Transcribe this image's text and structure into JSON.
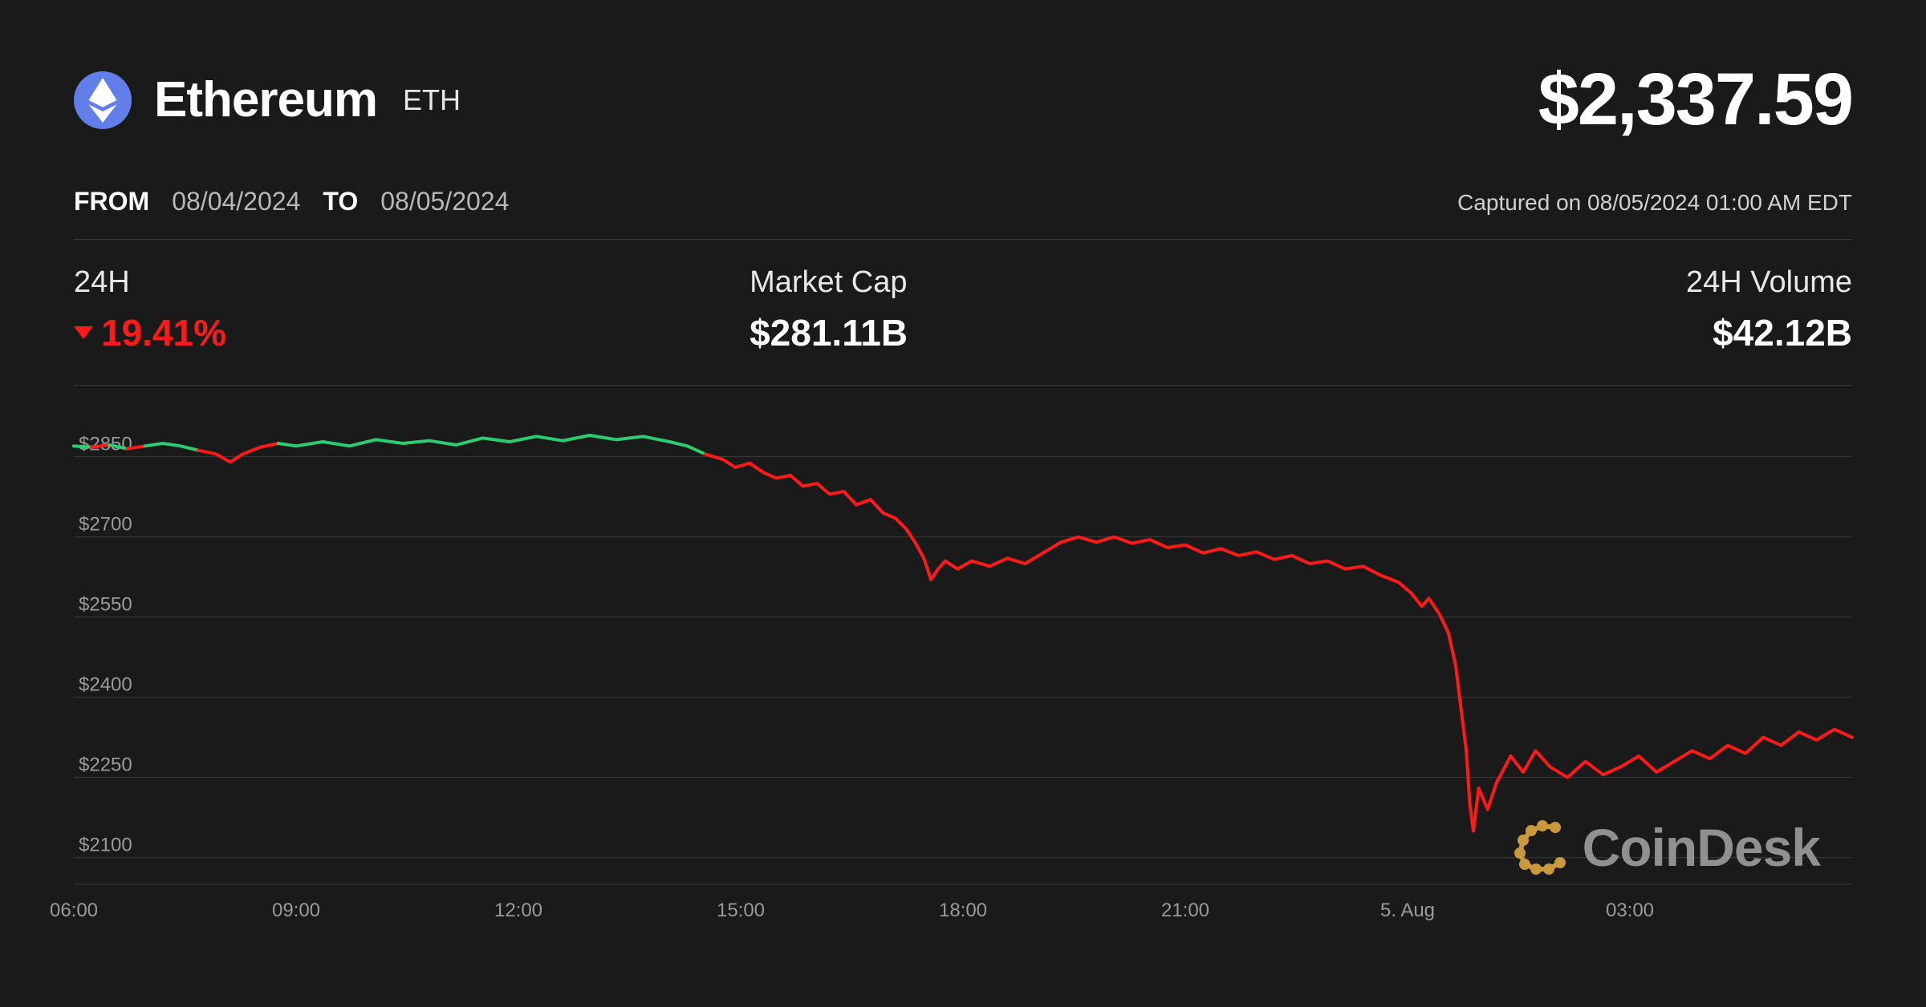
{
  "coin": {
    "name": "Ethereum",
    "symbol": "ETH",
    "logo_bg": "#627eea",
    "logo_fg": "#ffffff"
  },
  "price": "$2,337.59",
  "date_range": {
    "from_label": "FROM",
    "from": "08/04/2024",
    "to_label": "TO",
    "to": "08/05/2024"
  },
  "captured": "Captured on 08/05/2024 01:00 AM EDT",
  "stats": {
    "change_label": "24H",
    "change_value": "19.41%",
    "change_direction": "down",
    "change_color": "#ff1a1a",
    "mcap_label": "Market Cap",
    "mcap_value": "$281.11B",
    "vol_label": "24H Volume",
    "vol_value": "$42.12B"
  },
  "watermark": {
    "text": "CoinDesk",
    "icon_color": "#d9a441"
  },
  "chart": {
    "type": "line",
    "background_color": "#1a1a1a",
    "grid_color": "#3a3a3a",
    "line_width": 4,
    "green_color": "#2ecc71",
    "red_color": "#ff1a1a",
    "axis_label_color": "#9a9a9a",
    "axis_label_fontsize": 24,
    "y_ticks": [
      2100,
      2250,
      2400,
      2550,
      2700,
      2850
    ],
    "y_tick_labels": [
      "$2100",
      "$2250",
      "$2400",
      "$2550",
      "$2700",
      "$2850"
    ],
    "ylim": [
      2050,
      2950
    ],
    "x_ticks": [
      0,
      0.125,
      0.25,
      0.375,
      0.5,
      0.625,
      0.75,
      0.875,
      1.0
    ],
    "x_tick_labels": [
      "06:00",
      "09:00",
      "12:00",
      "15:00",
      "18:00",
      "21:00",
      "5. Aug",
      "03:00",
      ""
    ],
    "open_price": 2870,
    "series": [
      {
        "x": 0.0,
        "y": 2870
      },
      {
        "x": 0.01,
        "y": 2868
      },
      {
        "x": 0.02,
        "y": 2872
      },
      {
        "x": 0.03,
        "y": 2865
      },
      {
        "x": 0.04,
        "y": 2870
      },
      {
        "x": 0.05,
        "y": 2875
      },
      {
        "x": 0.06,
        "y": 2870
      },
      {
        "x": 0.07,
        "y": 2862
      },
      {
        "x": 0.08,
        "y": 2855
      },
      {
        "x": 0.088,
        "y": 2840
      },
      {
        "x": 0.095,
        "y": 2855
      },
      {
        "x": 0.105,
        "y": 2868
      },
      {
        "x": 0.115,
        "y": 2875
      },
      {
        "x": 0.125,
        "y": 2870
      },
      {
        "x": 0.14,
        "y": 2878
      },
      {
        "x": 0.155,
        "y": 2870
      },
      {
        "x": 0.17,
        "y": 2882
      },
      {
        "x": 0.185,
        "y": 2875
      },
      {
        "x": 0.2,
        "y": 2880
      },
      {
        "x": 0.215,
        "y": 2872
      },
      {
        "x": 0.23,
        "y": 2885
      },
      {
        "x": 0.245,
        "y": 2878
      },
      {
        "x": 0.26,
        "y": 2888
      },
      {
        "x": 0.275,
        "y": 2880
      },
      {
        "x": 0.29,
        "y": 2890
      },
      {
        "x": 0.305,
        "y": 2882
      },
      {
        "x": 0.32,
        "y": 2888
      },
      {
        "x": 0.335,
        "y": 2878
      },
      {
        "x": 0.345,
        "y": 2870
      },
      {
        "x": 0.355,
        "y": 2855
      },
      {
        "x": 0.365,
        "y": 2845
      },
      {
        "x": 0.372,
        "y": 2830
      },
      {
        "x": 0.38,
        "y": 2838
      },
      {
        "x": 0.388,
        "y": 2820
      },
      {
        "x": 0.395,
        "y": 2810
      },
      {
        "x": 0.403,
        "y": 2815
      },
      {
        "x": 0.41,
        "y": 2795
      },
      {
        "x": 0.418,
        "y": 2800
      },
      {
        "x": 0.425,
        "y": 2780
      },
      {
        "x": 0.433,
        "y": 2785
      },
      {
        "x": 0.44,
        "y": 2760
      },
      {
        "x": 0.448,
        "y": 2770
      },
      {
        "x": 0.455,
        "y": 2745
      },
      {
        "x": 0.462,
        "y": 2735
      },
      {
        "x": 0.468,
        "y": 2715
      },
      {
        "x": 0.473,
        "y": 2690
      },
      {
        "x": 0.478,
        "y": 2660
      },
      {
        "x": 0.482,
        "y": 2620
      },
      {
        "x": 0.486,
        "y": 2640
      },
      {
        "x": 0.49,
        "y": 2655
      },
      {
        "x": 0.497,
        "y": 2640
      },
      {
        "x": 0.505,
        "y": 2655
      },
      {
        "x": 0.515,
        "y": 2645
      },
      {
        "x": 0.525,
        "y": 2660
      },
      {
        "x": 0.535,
        "y": 2650
      },
      {
        "x": 0.545,
        "y": 2670
      },
      {
        "x": 0.555,
        "y": 2690
      },
      {
        "x": 0.565,
        "y": 2700
      },
      {
        "x": 0.575,
        "y": 2690
      },
      {
        "x": 0.585,
        "y": 2700
      },
      {
        "x": 0.595,
        "y": 2688
      },
      {
        "x": 0.605,
        "y": 2695
      },
      {
        "x": 0.615,
        "y": 2680
      },
      {
        "x": 0.625,
        "y": 2685
      },
      {
        "x": 0.635,
        "y": 2670
      },
      {
        "x": 0.645,
        "y": 2678
      },
      {
        "x": 0.655,
        "y": 2665
      },
      {
        "x": 0.665,
        "y": 2672
      },
      {
        "x": 0.675,
        "y": 2658
      },
      {
        "x": 0.685,
        "y": 2665
      },
      {
        "x": 0.695,
        "y": 2650
      },
      {
        "x": 0.705,
        "y": 2655
      },
      {
        "x": 0.715,
        "y": 2640
      },
      {
        "x": 0.725,
        "y": 2645
      },
      {
        "x": 0.735,
        "y": 2628
      },
      {
        "x": 0.745,
        "y": 2615
      },
      {
        "x": 0.752,
        "y": 2595
      },
      {
        "x": 0.758,
        "y": 2570
      },
      {
        "x": 0.762,
        "y": 2585
      },
      {
        "x": 0.768,
        "y": 2555
      },
      {
        "x": 0.773,
        "y": 2520
      },
      {
        "x": 0.777,
        "y": 2460
      },
      {
        "x": 0.78,
        "y": 2380
      },
      {
        "x": 0.783,
        "y": 2300
      },
      {
        "x": 0.785,
        "y": 2200
      },
      {
        "x": 0.787,
        "y": 2150
      },
      {
        "x": 0.79,
        "y": 2230
      },
      {
        "x": 0.795,
        "y": 2190
      },
      {
        "x": 0.8,
        "y": 2240
      },
      {
        "x": 0.808,
        "y": 2290
      },
      {
        "x": 0.815,
        "y": 2260
      },
      {
        "x": 0.822,
        "y": 2300
      },
      {
        "x": 0.83,
        "y": 2270
      },
      {
        "x": 0.84,
        "y": 2250
      },
      {
        "x": 0.85,
        "y": 2280
      },
      {
        "x": 0.86,
        "y": 2255
      },
      {
        "x": 0.87,
        "y": 2270
      },
      {
        "x": 0.88,
        "y": 2290
      },
      {
        "x": 0.89,
        "y": 2260
      },
      {
        "x": 0.9,
        "y": 2280
      },
      {
        "x": 0.91,
        "y": 2300
      },
      {
        "x": 0.92,
        "y": 2285
      },
      {
        "x": 0.93,
        "y": 2310
      },
      {
        "x": 0.94,
        "y": 2295
      },
      {
        "x": 0.95,
        "y": 2325
      },
      {
        "x": 0.96,
        "y": 2310
      },
      {
        "x": 0.97,
        "y": 2335
      },
      {
        "x": 0.98,
        "y": 2320
      },
      {
        "x": 0.99,
        "y": 2340
      },
      {
        "x": 1.0,
        "y": 2325
      }
    ]
  }
}
